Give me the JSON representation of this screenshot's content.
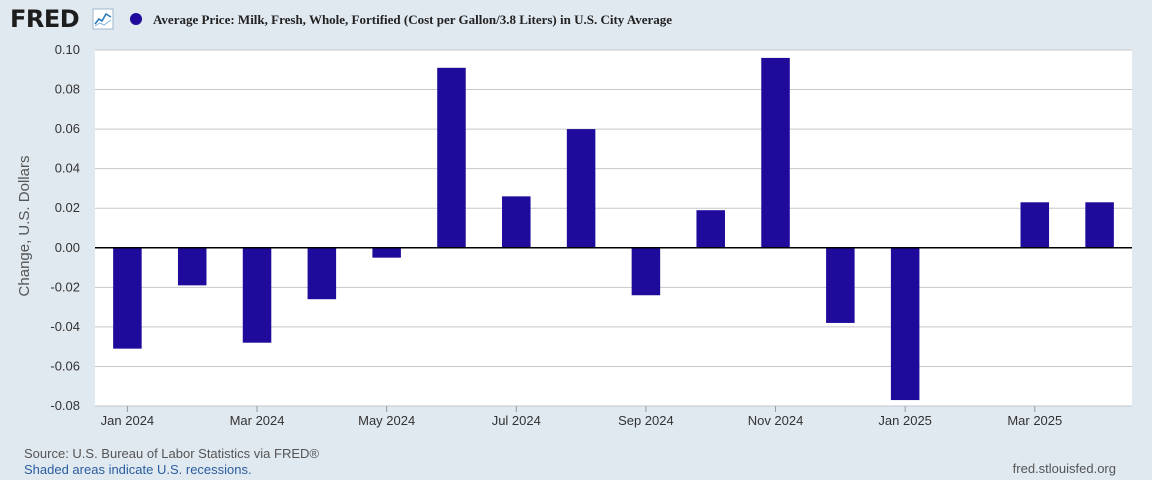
{
  "header": {
    "logo": "FRED",
    "series_title": "Average Price: Milk, Fresh, Whole, Fortified (Cost per Gallon/3.8 Liters) in U.S. City Average",
    "series_color": "#1e0b9b"
  },
  "chart_data": {
    "type": "bar",
    "title": "Average Price: Milk, Fresh, Whole, Fortified (Cost per Gallon/3.8 Liters) in U.S. City Average",
    "ylabel": "Change, U.S. Dollars",
    "xlabel": "",
    "ylim": [
      -0.08,
      0.1
    ],
    "yticks": [
      "0.10",
      "0.08",
      "0.06",
      "0.04",
      "0.02",
      "0.00",
      "-0.02",
      "-0.04",
      "-0.06",
      "-0.08"
    ],
    "ytick_values": [
      0.1,
      0.08,
      0.06,
      0.04,
      0.02,
      0,
      -0.02,
      -0.04,
      -0.06,
      -0.08
    ],
    "categories": [
      "Jan 2024",
      "Feb 2024",
      "Mar 2024",
      "Apr 2024",
      "May 2024",
      "Jun 2024",
      "Jul 2024",
      "Aug 2024",
      "Sep 2024",
      "Oct 2024",
      "Nov 2024",
      "Dec 2024",
      "Jan 2025",
      "Feb 2025",
      "Mar 2025",
      "Apr 2025"
    ],
    "values": [
      -0.051,
      -0.019,
      -0.048,
      -0.026,
      -0.005,
      0.091,
      0.026,
      0.06,
      -0.024,
      0.019,
      0.096,
      -0.038,
      -0.077,
      0,
      0.023,
      0.023
    ],
    "xtick_labels": [
      "Jan 2024",
      "Mar 2024",
      "May 2024",
      "Jul 2024",
      "Sep 2024",
      "Nov 2024",
      "Jan 2025",
      "Mar 2025"
    ],
    "xtick_indices": [
      0,
      2,
      4,
      6,
      8,
      10,
      12,
      14
    ],
    "grid": true,
    "bar_color": "#1e0b9b"
  },
  "footer": {
    "source": "Source: U.S. Bureau of Labor Statistics via FRED®",
    "shaded": "Shaded areas indicate U.S. recessions.",
    "url": "fred.stlouisfed.org"
  }
}
